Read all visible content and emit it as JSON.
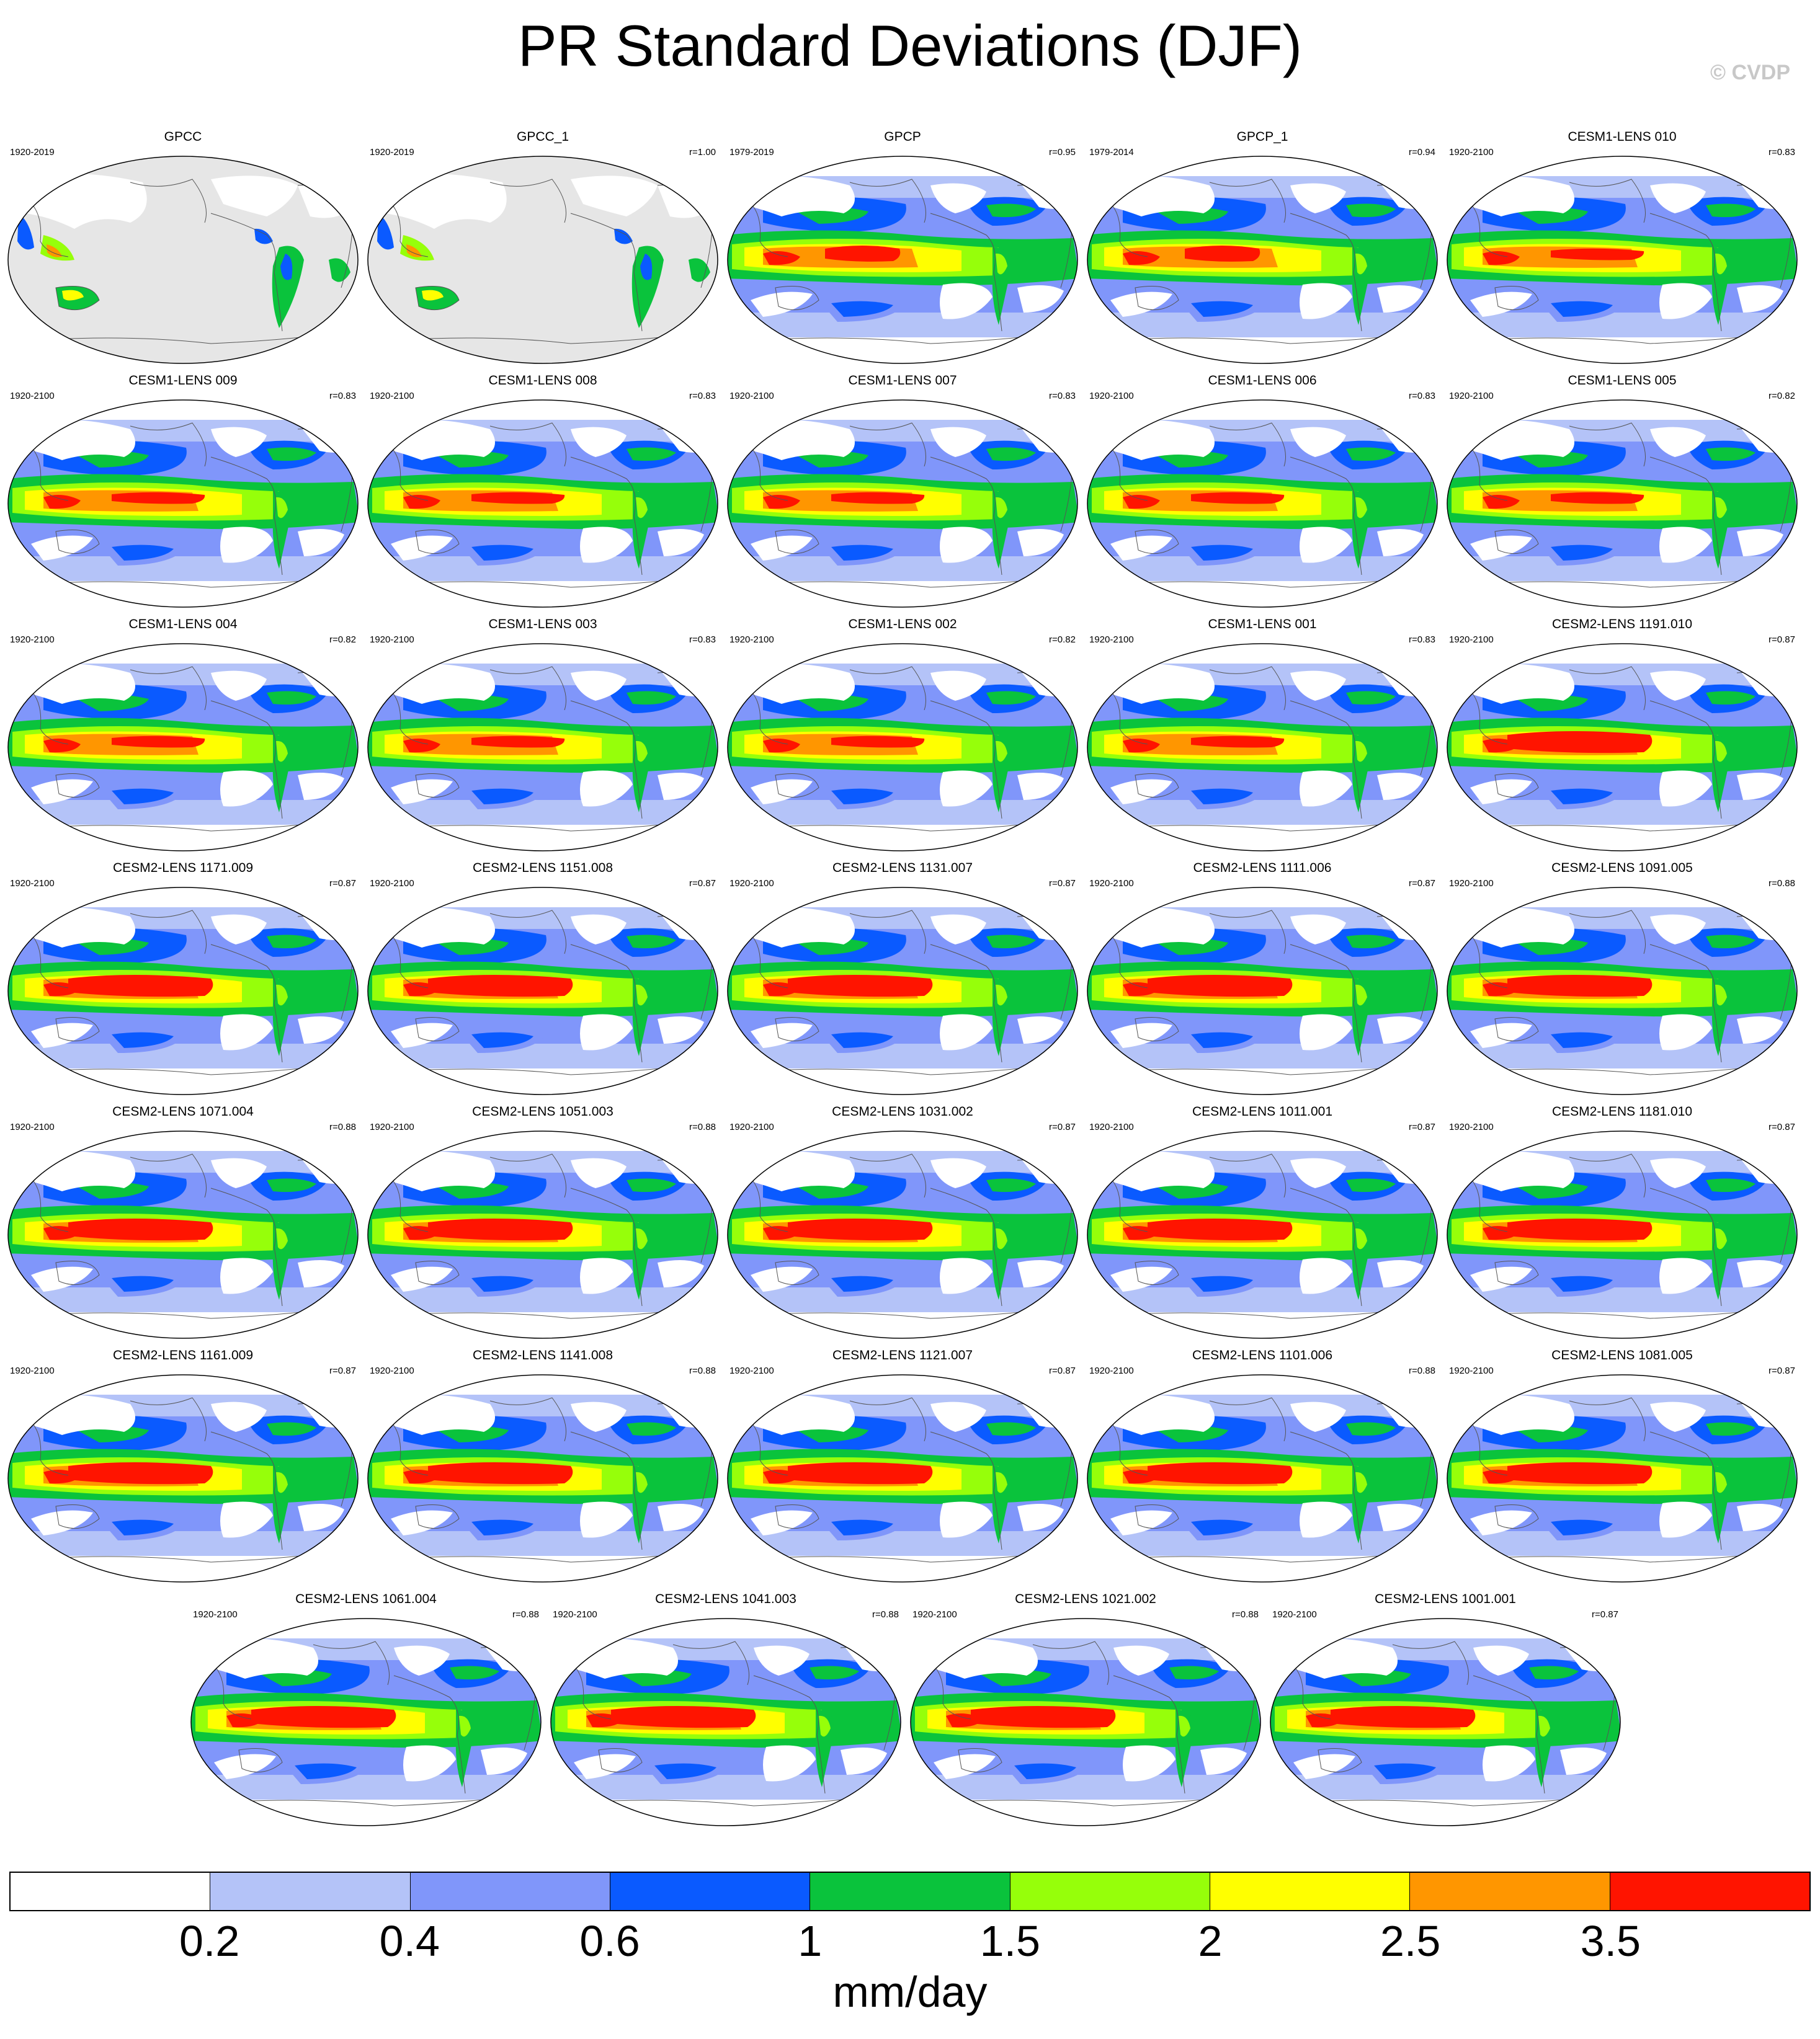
{
  "title": "PR Standard Deviations (DJF)",
  "copyright": "© CVDP",
  "panels": [
    {
      "name": "GPCC",
      "years": "1920-2019",
      "r": "",
      "style": "obs"
    },
    {
      "name": "GPCC_1",
      "years": "1920-2019",
      "r": "r=1.00",
      "style": "obs"
    },
    {
      "name": "GPCP",
      "years": "1979-2019",
      "r": "r=0.95",
      "style": "gpcp"
    },
    {
      "name": "GPCP_1",
      "years": "1979-2014",
      "r": "r=0.94",
      "style": "gpcp"
    },
    {
      "name": "CESM1-LENS 010",
      "years": "1920-2100",
      "r": "r=0.83",
      "style": "cesm1"
    },
    {
      "name": "CESM1-LENS 009",
      "years": "1920-2100",
      "r": "r=0.83",
      "style": "cesm1"
    },
    {
      "name": "CESM1-LENS 008",
      "years": "1920-2100",
      "r": "r=0.83",
      "style": "cesm1"
    },
    {
      "name": "CESM1-LENS 007",
      "years": "1920-2100",
      "r": "r=0.83",
      "style": "cesm1"
    },
    {
      "name": "CESM1-LENS 006",
      "years": "1920-2100",
      "r": "r=0.83",
      "style": "cesm1"
    },
    {
      "name": "CESM1-LENS 005",
      "years": "1920-2100",
      "r": "r=0.82",
      "style": "cesm1"
    },
    {
      "name": "CESM1-LENS 004",
      "years": "1920-2100",
      "r": "r=0.82",
      "style": "cesm1"
    },
    {
      "name": "CESM1-LENS 003",
      "years": "1920-2100",
      "r": "r=0.83",
      "style": "cesm1"
    },
    {
      "name": "CESM1-LENS 002",
      "years": "1920-2100",
      "r": "r=0.82",
      "style": "cesm1"
    },
    {
      "name": "CESM1-LENS 001",
      "years": "1920-2100",
      "r": "r=0.83",
      "style": "cesm1"
    },
    {
      "name": "CESM2-LENS 1191.010",
      "years": "1920-2100",
      "r": "r=0.87",
      "style": "cesm2"
    },
    {
      "name": "CESM2-LENS 1171.009",
      "years": "1920-2100",
      "r": "r=0.87",
      "style": "cesm2"
    },
    {
      "name": "CESM2-LENS 1151.008",
      "years": "1920-2100",
      "r": "r=0.87",
      "style": "cesm2"
    },
    {
      "name": "CESM2-LENS 1131.007",
      "years": "1920-2100",
      "r": "r=0.87",
      "style": "cesm2"
    },
    {
      "name": "CESM2-LENS 1111.006",
      "years": "1920-2100",
      "r": "r=0.87",
      "style": "cesm2"
    },
    {
      "name": "CESM2-LENS 1091.005",
      "years": "1920-2100",
      "r": "r=0.88",
      "style": "cesm2"
    },
    {
      "name": "CESM2-LENS 1071.004",
      "years": "1920-2100",
      "r": "r=0.88",
      "style": "cesm2"
    },
    {
      "name": "CESM2-LENS 1051.003",
      "years": "1920-2100",
      "r": "r=0.88",
      "style": "cesm2"
    },
    {
      "name": "CESM2-LENS 1031.002",
      "years": "1920-2100",
      "r": "r=0.87",
      "style": "cesm2"
    },
    {
      "name": "CESM2-LENS 1011.001",
      "years": "1920-2100",
      "r": "r=0.87",
      "style": "cesm2"
    },
    {
      "name": "CESM2-LENS 1181.010",
      "years": "1920-2100",
      "r": "r=0.87",
      "style": "cesm2"
    },
    {
      "name": "CESM2-LENS 1161.009",
      "years": "1920-2100",
      "r": "r=0.87",
      "style": "cesm2"
    },
    {
      "name": "CESM2-LENS 1141.008",
      "years": "1920-2100",
      "r": "r=0.88",
      "style": "cesm2"
    },
    {
      "name": "CESM2-LENS 1121.007",
      "years": "1920-2100",
      "r": "r=0.87",
      "style": "cesm2"
    },
    {
      "name": "CESM2-LENS 1101.006",
      "years": "1920-2100",
      "r": "r=0.88",
      "style": "cesm2"
    },
    {
      "name": "CESM2-LENS 1081.005",
      "years": "1920-2100",
      "r": "r=0.87",
      "style": "cesm2"
    },
    {
      "name": "CESM2-LENS 1061.004",
      "years": "1920-2100",
      "r": "r=0.88",
      "style": "cesm2"
    },
    {
      "name": "CESM2-LENS 1041.003",
      "years": "1920-2100",
      "r": "r=0.88",
      "style": "cesm2"
    },
    {
      "name": "CESM2-LENS 1021.002",
      "years": "1920-2100",
      "r": "r=0.88",
      "style": "cesm2"
    },
    {
      "name": "CESM2-LENS 1001.001",
      "years": "1920-2100",
      "r": "r=0.87",
      "style": "cesm2"
    }
  ],
  "colorbar": {
    "colors": [
      "#ffffff",
      "#b4c3f8",
      "#8096fa",
      "#0a5aff",
      "#0ac33c",
      "#96ff0a",
      "#ffff00",
      "#ff9600",
      "#ff1400"
    ],
    "tick_labels": [
      "0.2",
      "0.4",
      "0.6",
      "1",
      "1.5",
      "2",
      "2.5",
      "3.5"
    ],
    "units": "mm/day"
  },
  "colors": {
    "land_mask": "#e6e6e6",
    "coastline": "#555555",
    "border": "#000000"
  }
}
